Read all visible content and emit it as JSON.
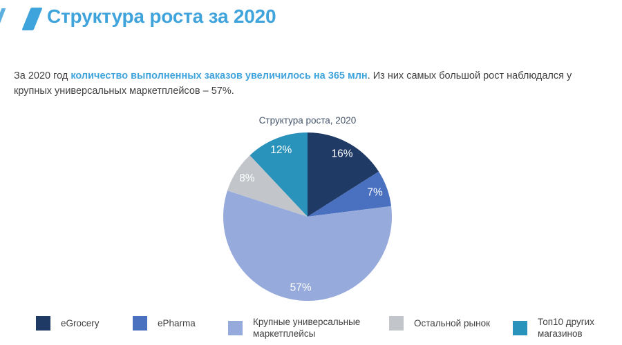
{
  "header": {
    "title": "Структура роста за 2020",
    "accent_color": "#3fa3dc"
  },
  "paragraph": {
    "prefix": "За 2020 год ",
    "highlight": "количество выполненных заказов увеличилось на 365 млн",
    "suffix": ". Из них самых большой рост наблюдался у крупных универсальных маркетплейсов – 57%."
  },
  "chart_data": {
    "type": "pie",
    "title": "Структура роста, 2020",
    "direction": "clockwise",
    "start_angle_deg": 0,
    "legend_position": "bottom",
    "data_label_color": "#ffffff",
    "slices": [
      {
        "label": "eGrocery",
        "value": 16,
        "data_label": "16%",
        "color": "#203a66"
      },
      {
        "label": "ePharma",
        "value": 7,
        "data_label": "7%",
        "color": "#4a70c0"
      },
      {
        "label": "Крупные универсальные маркетплейсы",
        "value": 57,
        "data_label": "57%",
        "color": "#97aadc"
      },
      {
        "label": "Остальной рынок",
        "value": 8,
        "data_label": "8%",
        "color": "#c2c6cb"
      },
      {
        "label": "Топ10 других магазинов",
        "value": 12,
        "data_label": "12%",
        "color": "#2a93bb"
      }
    ]
  }
}
